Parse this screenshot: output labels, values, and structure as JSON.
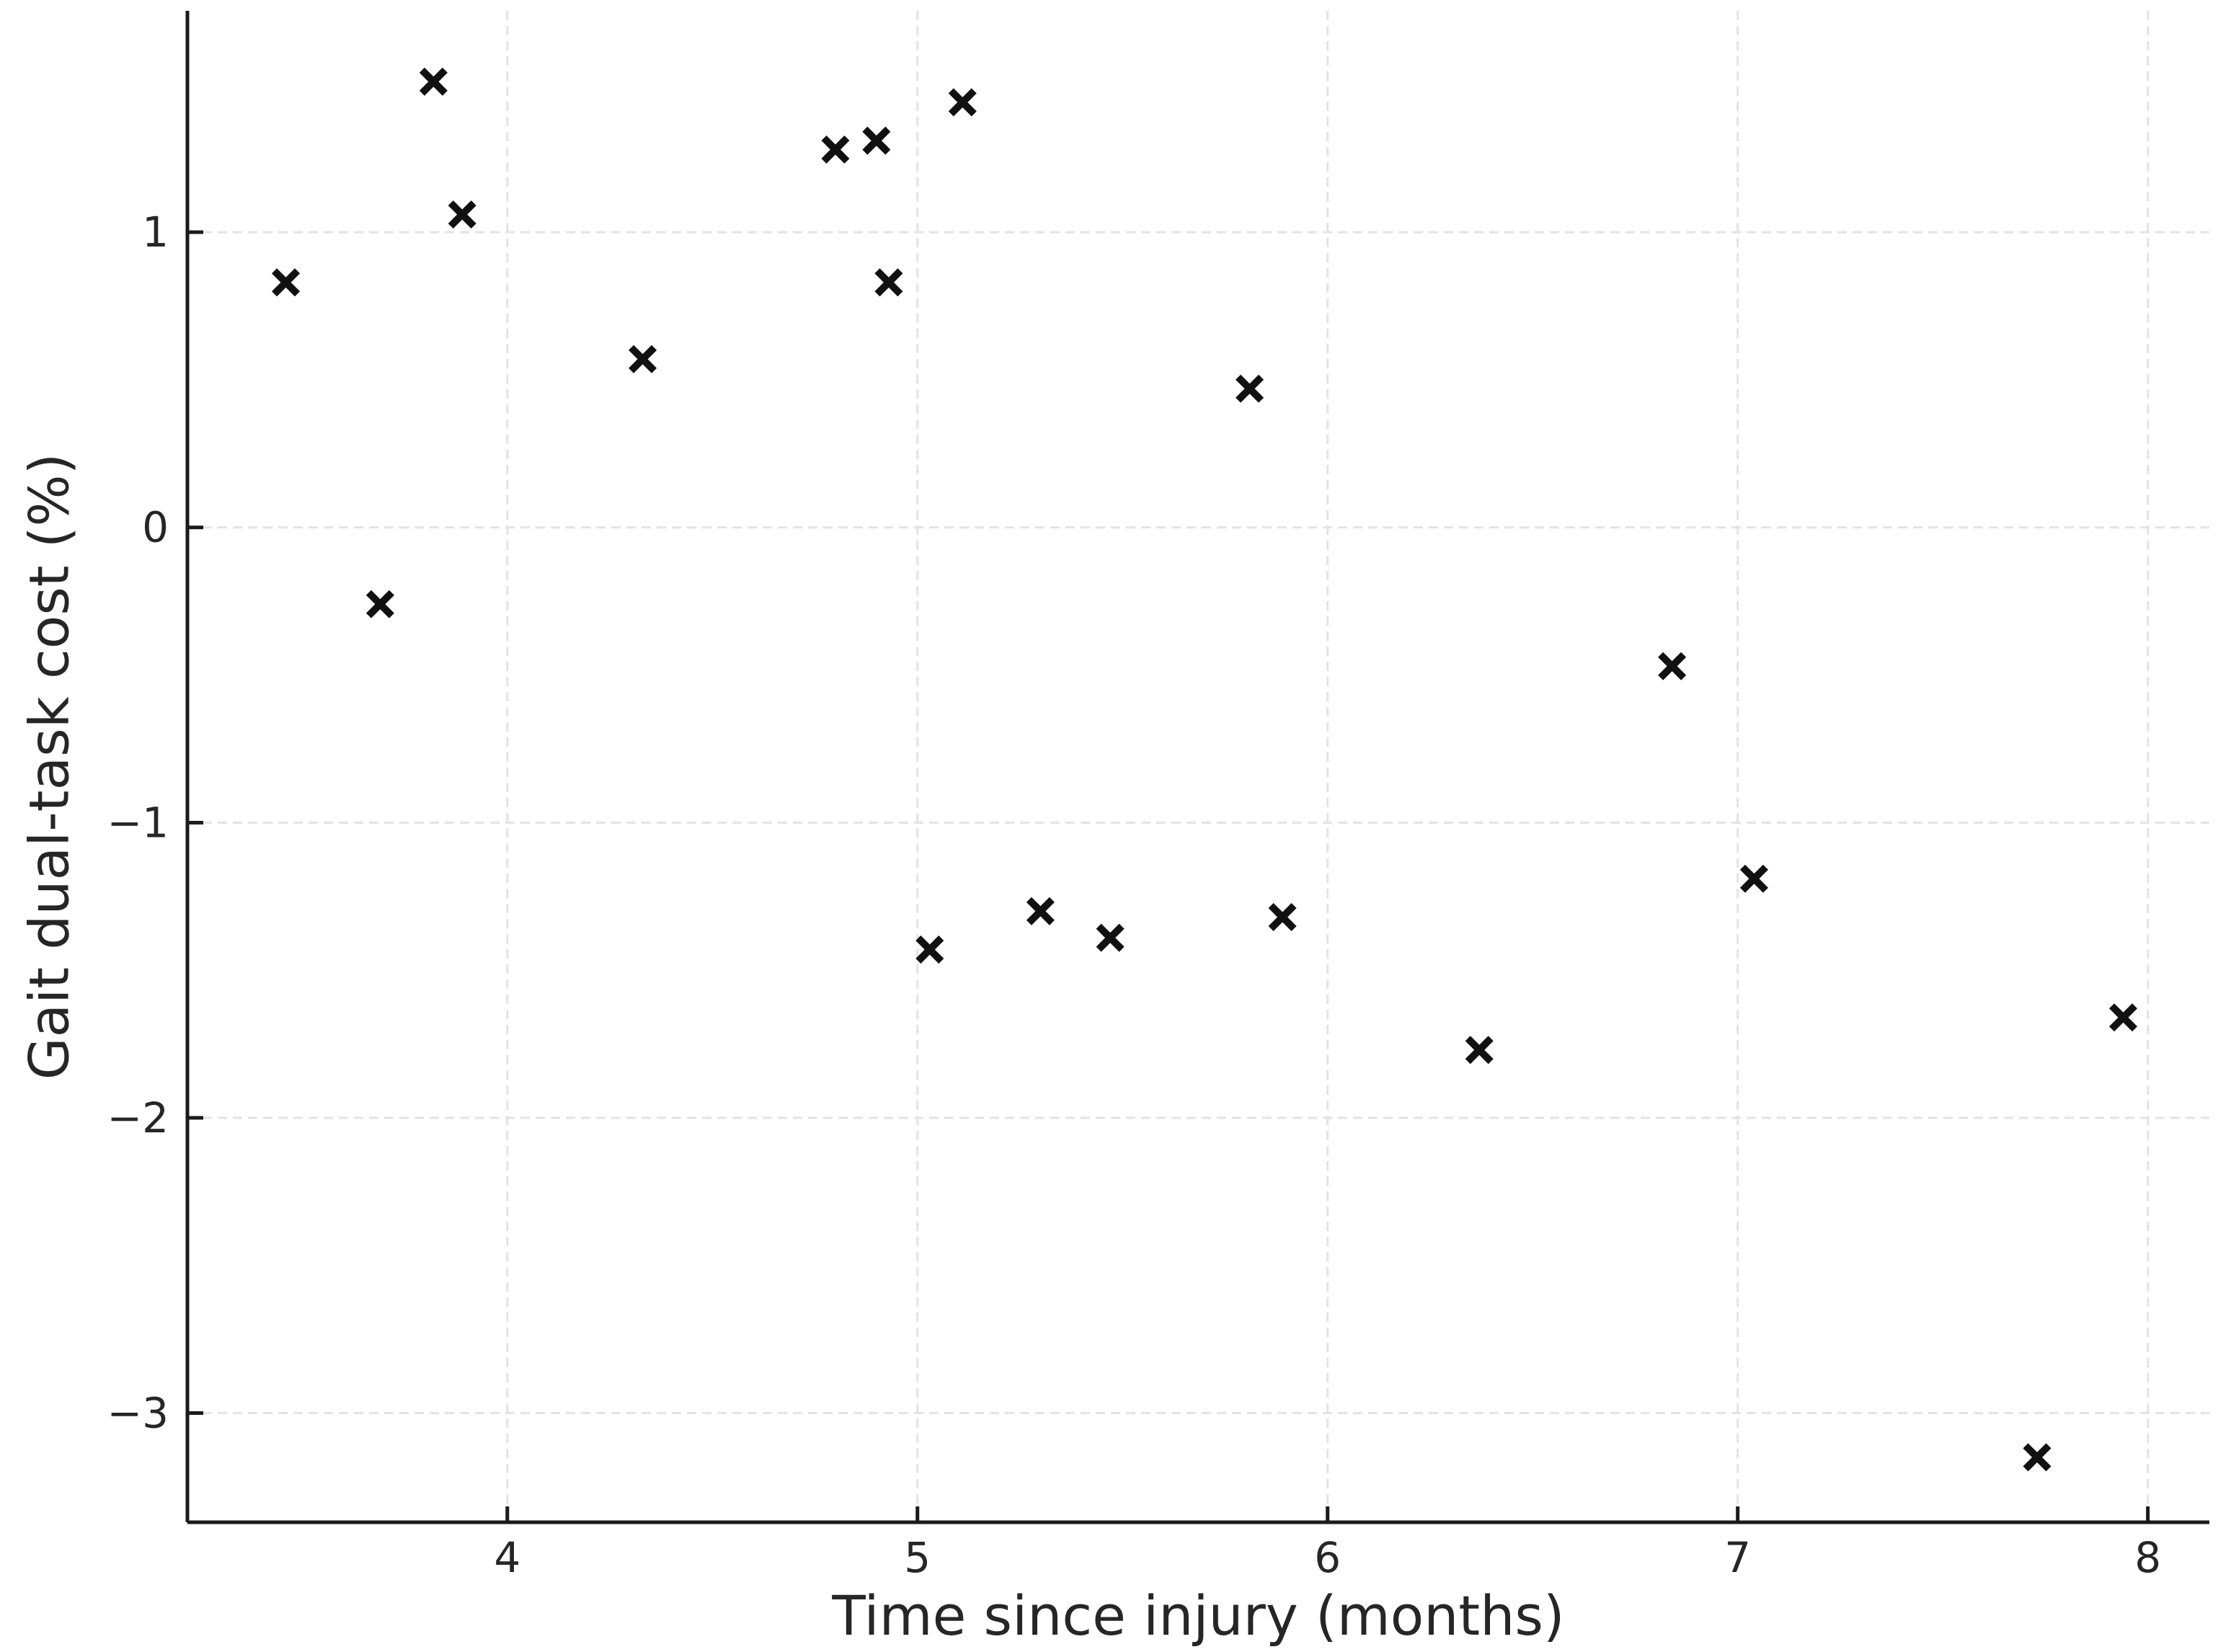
{
  "figure": {
    "background": "#ffffff",
    "colors": {
      "marker": "#111111",
      "spine": "#1a1a1a",
      "grid": "#e3e3e3",
      "text": "#262626"
    }
  },
  "chart_data": {
    "type": "scatter",
    "title": "",
    "xlabel": "Time since injury (months)",
    "ylabel": "Gait dual-task cost (%)",
    "marker": "x",
    "grid": "dashed",
    "legend": "none",
    "xlim": [
      3.22,
      8.15
    ],
    "ylim": [
      -3.37,
      1.75
    ],
    "x_ticks": [
      4,
      5,
      6,
      7,
      8
    ],
    "x_tick_labels": [
      "4",
      "5",
      "6",
      "7",
      "8"
    ],
    "y_ticks": [
      1,
      0,
      -1,
      -2,
      -3
    ],
    "y_tick_labels": [
      "1",
      "0",
      "−1",
      "−2",
      "−3"
    ],
    "points": [
      [
        3.46,
        0.83
      ],
      [
        3.69,
        -0.26
      ],
      [
        3.82,
        1.51
      ],
      [
        3.89,
        1.06
      ],
      [
        4.33,
        0.57
      ],
      [
        4.8,
        1.28
      ],
      [
        4.9,
        1.31
      ],
      [
        4.93,
        0.83
      ],
      [
        5.03,
        -1.43
      ],
      [
        5.11,
        1.44
      ],
      [
        5.3,
        -1.3
      ],
      [
        5.47,
        -1.39
      ],
      [
        5.81,
        0.47
      ],
      [
        5.89,
        -1.32
      ],
      [
        6.37,
        -1.77
      ],
      [
        6.84,
        -0.47
      ],
      [
        7.04,
        -1.19
      ],
      [
        7.73,
        -3.15
      ],
      [
        7.94,
        -1.66
      ]
    ]
  }
}
